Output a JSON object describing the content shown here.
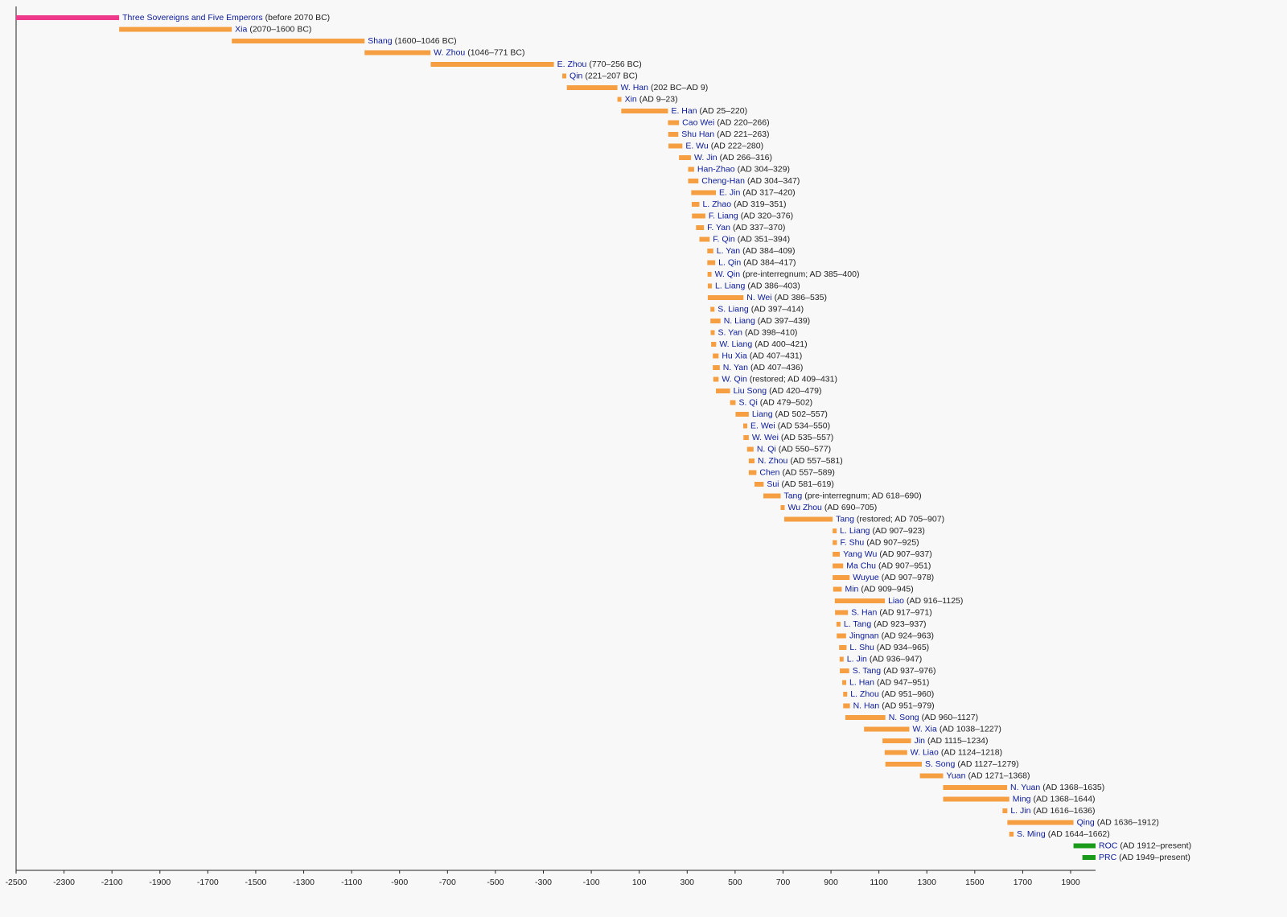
{
  "chart_data": {
    "type": "timeline",
    "categories": [
      "Three Sovereigns and Five Emperors",
      "Xia",
      "Shang",
      "W. Zhou",
      "E. Zhou",
      "Qin",
      "W. Han",
      "Xin",
      "E. Han",
      "Cao Wei",
      "Shu Han",
      "E. Wu",
      "W. Jin",
      "Han-Zhao",
      "Cheng-Han",
      "E. Jin",
      "L. Zhao",
      "F. Liang",
      "F. Yan",
      "F. Qin",
      "L. Yan",
      "L. Qin",
      "W. Qin",
      "L. Liang",
      "N. Wei",
      "S. Liang",
      "N. Liang",
      "S. Yan",
      "W. Liang",
      "Hu Xia",
      "N. Yan",
      "W. Qin",
      "Liu Song",
      "S. Qi",
      "Liang",
      "E. Wei",
      "W. Wei",
      "N. Qi",
      "N. Zhou",
      "Chen",
      "Sui",
      "Tang",
      "Wu Zhou",
      "Tang",
      "L. Liang",
      "F. Shu",
      "Yang Wu",
      "Ma Chu",
      "Wuyue",
      "Min",
      "Liao",
      "S. Han",
      "L. Tang",
      "Jingnan",
      "L. Shu",
      "L. Jin",
      "S. Tang",
      "L. Han",
      "L. Zhou",
      "N. Han",
      "N. Song",
      "W. Xia",
      "Jin",
      "W. Liao",
      "S. Song",
      "Yuan",
      "N. Yuan",
      "Ming",
      "L. Jin",
      "Qing",
      "S. Ming",
      "ROC",
      "PRC"
    ],
    "periods": [
      "(before 2070 BC)",
      "(2070–1600 BC)",
      "(1600–1046 BC)",
      "(1046–771 BC)",
      "(770–256 BC)",
      "(221–207 BC)",
      "(202 BC–AD 9)",
      "(AD 9–23)",
      "(AD 25–220)",
      "(AD 220–266)",
      "(AD 221–263)",
      "(AD 222–280)",
      "(AD 266–316)",
      "(AD 304–329)",
      "(AD 304–347)",
      "(AD 317–420)",
      "(AD 319–351)",
      "(AD 320–376)",
      "(AD 337–370)",
      "(AD 351–394)",
      "(AD 384–409)",
      "(AD 384–417)",
      "(pre-interregnum; AD 385–400)",
      "(AD 386–403)",
      "(AD 386–535)",
      "(AD 397–414)",
      "(AD 397–439)",
      "(AD 398–410)",
      "(AD 400–421)",
      "(AD 407–431)",
      "(AD 407–436)",
      "(restored; AD 409–431)",
      "(AD 420–479)",
      "(AD 479–502)",
      "(AD 502–557)",
      "(AD 534–550)",
      "(AD 535–557)",
      "(AD 550–577)",
      "(AD 557–581)",
      "(AD 557–589)",
      "(AD 581–619)",
      "(pre-interregnum; AD 618–690)",
      "(AD 690–705)",
      "(restored; AD 705–907)",
      "(AD 907–923)",
      "(AD 907–925)",
      "(AD 907–937)",
      "(AD 907–951)",
      "(AD 907–978)",
      "(AD 909–945)",
      "(AD 916–1125)",
      "(AD 917–971)",
      "(AD 923–937)",
      "(AD 924–963)",
      "(AD 934–965)",
      "(AD 936–947)",
      "(AD 937–976)",
      "(AD 947–951)",
      "(AD 951–960)",
      "(AD 951–979)",
      "(AD 960–1127)",
      "(AD 1038–1227)",
      "(AD 1115–1234)",
      "(AD 1124–1218)",
      "(AD 1127–1279)",
      "(AD 1271–1368)",
      "(AD 1368–1635)",
      "(AD 1368–1644)",
      "(AD 1616–1636)",
      "(AD 1636–1912)",
      "(AD 1644–1662)",
      "(AD 1912–present)",
      "(AD 1949–present)"
    ],
    "starts": [
      -2500,
      -2070,
      -1600,
      -1046,
      -770,
      -221,
      -202,
      9,
      25,
      220,
      221,
      222,
      266,
      304,
      304,
      317,
      319,
      320,
      337,
      351,
      384,
      384,
      385,
      386,
      386,
      397,
      397,
      398,
      400,
      407,
      407,
      409,
      420,
      479,
      502,
      534,
      535,
      550,
      557,
      557,
      581,
      618,
      690,
      705,
      907,
      907,
      907,
      907,
      907,
      909,
      916,
      917,
      923,
      924,
      934,
      936,
      937,
      947,
      951,
      951,
      960,
      1038,
      1115,
      1124,
      1127,
      1271,
      1368,
      1368,
      1616,
      1636,
      1644,
      1912,
      1949
    ],
    "ends": [
      -2070,
      -1600,
      -1046,
      -771,
      -256,
      -207,
      9,
      23,
      220,
      266,
      263,
      280,
      316,
      329,
      347,
      420,
      351,
      376,
      370,
      394,
      409,
      417,
      400,
      403,
      535,
      414,
      439,
      410,
      421,
      431,
      436,
      431,
      479,
      502,
      557,
      550,
      557,
      577,
      581,
      589,
      619,
      690,
      705,
      907,
      923,
      925,
      937,
      951,
      978,
      945,
      1125,
      971,
      937,
      963,
      965,
      947,
      976,
      951,
      960,
      979,
      1127,
      1227,
      1234,
      1218,
      1279,
      1368,
      1635,
      1644,
      1636,
      1912,
      1662,
      2004,
      2004
    ],
    "colors": [
      "#ee3a8c",
      "#f59f42",
      "#f59f42",
      "#f59f42",
      "#f59f42",
      "#f59f42",
      "#f59f42",
      "#f59f42",
      "#f59f42",
      "#f59f42",
      "#f59f42",
      "#f59f42",
      "#f59f42",
      "#f59f42",
      "#f59f42",
      "#f59f42",
      "#f59f42",
      "#f59f42",
      "#f59f42",
      "#f59f42",
      "#f59f42",
      "#f59f42",
      "#f59f42",
      "#f59f42",
      "#f59f42",
      "#f59f42",
      "#f59f42",
      "#f59f42",
      "#f59f42",
      "#f59f42",
      "#f59f42",
      "#f59f42",
      "#f59f42",
      "#f59f42",
      "#f59f42",
      "#f59f42",
      "#f59f42",
      "#f59f42",
      "#f59f42",
      "#f59f42",
      "#f59f42",
      "#f59f42",
      "#f59f42",
      "#f59f42",
      "#f59f42",
      "#f59f42",
      "#f59f42",
      "#f59f42",
      "#f59f42",
      "#f59f42",
      "#f59f42",
      "#f59f42",
      "#f59f42",
      "#f59f42",
      "#f59f42",
      "#f59f42",
      "#f59f42",
      "#f59f42",
      "#f59f42",
      "#f59f42",
      "#f59f42",
      "#f59f42",
      "#f59f42",
      "#f59f42",
      "#f59f42",
      "#f59f42",
      "#f59f42",
      "#f59f42",
      "#f59f42",
      "#f59f42",
      "#f59f42",
      "#1a9a1a",
      "#1a9a1a"
    ],
    "xlim": [
      -2500,
      2004
    ],
    "xticks": [
      -2500,
      -2300,
      -2100,
      -1900,
      -1700,
      -1500,
      -1300,
      -1100,
      -900,
      -700,
      -500,
      -300,
      -100,
      100,
      300,
      500,
      700,
      900,
      1100,
      1300,
      1500,
      1700,
      1900
    ]
  }
}
